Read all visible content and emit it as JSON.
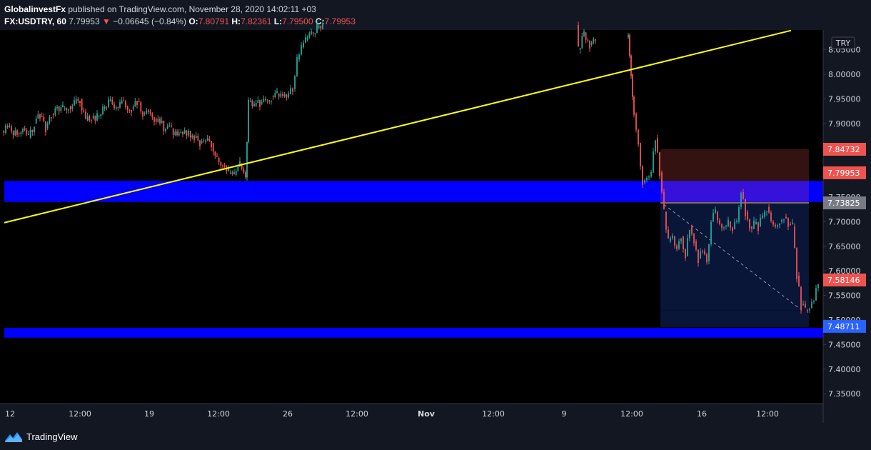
{
  "header": {
    "author": "GlobalinvestFx",
    "published": " published on TradingView.com, November 28, 2020 14:02:11 +03"
  },
  "symbol_line": {
    "symbol": "FX:USDTRY, 60",
    "last": "7.79953",
    "change_arrow": "▼",
    "change": "−0.06645 (−0.84%)",
    "o_label": "O:",
    "o": "7.80791",
    "h_label": "H:",
    "h": "7.82361",
    "l_label": "L:",
    "l": "7.79500",
    "c_label": "C:",
    "c": "7.79953"
  },
  "currency_badge": "TRY",
  "footer": {
    "brand": "TradingView"
  },
  "colors": {
    "background": "#000000",
    "up": "#26a69a",
    "down": "#ef5350",
    "trendline": "#ffff00",
    "zone": "#0000ff",
    "accent": "#ef5350"
  },
  "chart_data": {
    "type": "candlestick",
    "y_axis": {
      "min": 7.33,
      "max": 8.09,
      "ticks": [
        "8.05000",
        "8.00000",
        "7.95000",
        "7.90000",
        "7.85000",
        "7.80000",
        "7.75000",
        "7.70000",
        "7.65000",
        "7.60000",
        "7.55000",
        "7.50000",
        "7.45000",
        "7.40000",
        "7.35000"
      ]
    },
    "x_axis": {
      "labels": [
        "12",
        "12:00",
        "19",
        "12:00",
        "26",
        "12:00",
        "Nov",
        "12:00",
        "9",
        "12:00",
        "16",
        "12:00"
      ],
      "bold": [
        "Nov"
      ]
    },
    "price_tags": [
      {
        "value": 7.84732,
        "text": "7.84732",
        "color": "#ef5350"
      },
      {
        "value": 7.79953,
        "text": "7.79953",
        "color": "#ef5350"
      },
      {
        "value": 7.73825,
        "text": "7.73825",
        "color": "#787b86"
      },
      {
        "value": 7.58146,
        "text": "7.58146",
        "color": "#ef5350"
      },
      {
        "value": 7.48711,
        "text": "7.48711",
        "color": "#2962ff"
      }
    ],
    "trendline": {
      "start": {
        "x_index": 0,
        "y": 7.698
      },
      "end": {
        "x_index": 1,
        "y": 8.089
      }
    },
    "zones": [
      {
        "top": 7.783,
        "bottom": 7.74
      },
      {
        "top": 7.484,
        "bottom": 7.464
      }
    ],
    "short_position": {
      "entry": 7.73825,
      "stop": 7.84732,
      "target": 7.48711,
      "bottom": 7.486
    },
    "close_series": [
      {
        "t": 0,
        "c": 7.87
      },
      {
        "t": 8,
        "c": 7.895
      },
      {
        "t": 16,
        "c": 7.885
      },
      {
        "t": 24,
        "c": 7.88
      },
      {
        "t": 32,
        "c": 7.89
      },
      {
        "t": 40,
        "c": 7.87
      },
      {
        "t": 48,
        "c": 7.9
      },
      {
        "t": 56,
        "c": 7.915
      },
      {
        "t": 64,
        "c": 7.89
      },
      {
        "t": 72,
        "c": 7.92
      },
      {
        "t": 80,
        "c": 7.935
      },
      {
        "t": 88,
        "c": 7.93
      },
      {
        "t": 96,
        "c": 7.935
      },
      {
        "t": 104,
        "c": 7.94
      },
      {
        "t": 112,
        "c": 7.95
      },
      {
        "t": 120,
        "c": 7.905
      },
      {
        "t": 128,
        "c": 7.91
      },
      {
        "t": 136,
        "c": 7.915
      },
      {
        "t": 144,
        "c": 7.93
      },
      {
        "t": 152,
        "c": 7.945
      },
      {
        "t": 160,
        "c": 7.93
      },
      {
        "t": 168,
        "c": 7.94
      },
      {
        "t": 176,
        "c": 7.935
      },
      {
        "t": 184,
        "c": 7.93
      },
      {
        "t": 192,
        "c": 7.945
      },
      {
        "t": 200,
        "c": 7.92
      },
      {
        "t": 208,
        "c": 7.925
      },
      {
        "t": 216,
        "c": 7.91
      },
      {
        "t": 224,
        "c": 7.9
      },
      {
        "t": 232,
        "c": 7.89
      },
      {
        "t": 240,
        "c": 7.89
      },
      {
        "t": 248,
        "c": 7.875
      },
      {
        "t": 256,
        "c": 7.88
      },
      {
        "t": 264,
        "c": 7.885
      },
      {
        "t": 272,
        "c": 7.87
      },
      {
        "t": 280,
        "c": 7.86
      },
      {
        "t": 288,
        "c": 7.865
      },
      {
        "t": 296,
        "c": 7.86
      },
      {
        "t": 304,
        "c": 7.83
      },
      {
        "t": 312,
        "c": 7.815
      },
      {
        "t": 320,
        "c": 7.8
      },
      {
        "t": 328,
        "c": 7.795
      },
      {
        "t": 336,
        "c": 7.815
      },
      {
        "t": 344,
        "c": 7.79
      },
      {
        "t": 348,
        "c": 7.945
      },
      {
        "t": 356,
        "c": 7.935
      },
      {
        "t": 364,
        "c": 7.94
      },
      {
        "t": 372,
        "c": 7.945
      },
      {
        "t": 380,
        "c": 7.955
      },
      {
        "t": 388,
        "c": 7.96
      },
      {
        "t": 396,
        "c": 7.955
      },
      {
        "t": 404,
        "c": 7.96
      },
      {
        "t": 410,
        "c": 7.97
      },
      {
        "t": 416,
        "c": 8.03
      },
      {
        "t": 422,
        "c": 8.055
      },
      {
        "t": 428,
        "c": 8.07
      },
      {
        "t": 436,
        "c": 8.085
      },
      {
        "t": 444,
        "c": 8.095
      },
      {
        "t": 452,
        "c": 8.1
      },
      {
        "t": 810,
        "c": 8.05
      },
      {
        "t": 818,
        "c": 8.085
      },
      {
        "t": 826,
        "c": 8.06
      },
      {
        "t": 834,
        "c": 8.075
      },
      {
        "t": 880,
        "c": 8.08
      },
      {
        "t": 884,
        "c": 8.0
      },
      {
        "t": 888,
        "c": 7.92
      },
      {
        "t": 894,
        "c": 7.86
      },
      {
        "t": 900,
        "c": 7.78
      },
      {
        "t": 906,
        "c": 7.79
      },
      {
        "t": 912,
        "c": 7.8
      },
      {
        "t": 918,
        "c": 7.87
      },
      {
        "t": 924,
        "c": 7.8
      },
      {
        "t": 930,
        "c": 7.72
      },
      {
        "t": 936,
        "c": 7.66
      },
      {
        "t": 942,
        "c": 7.67
      },
      {
        "t": 948,
        "c": 7.645
      },
      {
        "t": 954,
        "c": 7.67
      },
      {
        "t": 960,
        "c": 7.63
      },
      {
        "t": 966,
        "c": 7.69
      },
      {
        "t": 972,
        "c": 7.66
      },
      {
        "t": 978,
        "c": 7.625
      },
      {
        "t": 984,
        "c": 7.64
      },
      {
        "t": 990,
        "c": 7.62
      },
      {
        "t": 996,
        "c": 7.7
      },
      {
        "t": 1002,
        "c": 7.72
      },
      {
        "t": 1008,
        "c": 7.695
      },
      {
        "t": 1014,
        "c": 7.69
      },
      {
        "t": 1020,
        "c": 7.7
      },
      {
        "t": 1026,
        "c": 7.685
      },
      {
        "t": 1032,
        "c": 7.7
      },
      {
        "t": 1038,
        "c": 7.76
      },
      {
        "t": 1044,
        "c": 7.72
      },
      {
        "t": 1050,
        "c": 7.69
      },
      {
        "t": 1056,
        "c": 7.695
      },
      {
        "t": 1062,
        "c": 7.69
      },
      {
        "t": 1068,
        "c": 7.71
      },
      {
        "t": 1074,
        "c": 7.73
      },
      {
        "t": 1080,
        "c": 7.7
      },
      {
        "t": 1086,
        "c": 7.69
      },
      {
        "t": 1092,
        "c": 7.7
      },
      {
        "t": 1098,
        "c": 7.71
      },
      {
        "t": 1104,
        "c": 7.695
      },
      {
        "t": 1110,
        "c": 7.69
      },
      {
        "t": 1116,
        "c": 7.59
      },
      {
        "t": 1122,
        "c": 7.53
      },
      {
        "t": 1128,
        "c": 7.52
      },
      {
        "t": 1134,
        "c": 7.525
      },
      {
        "t": 1140,
        "c": 7.54
      },
      {
        "t": 1146,
        "c": 7.58
      }
    ]
  }
}
